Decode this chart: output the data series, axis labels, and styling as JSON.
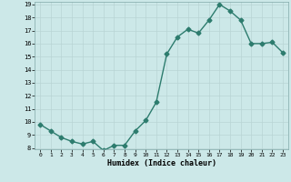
{
  "x": [
    0,
    1,
    2,
    3,
    4,
    5,
    6,
    7,
    8,
    9,
    10,
    11,
    12,
    13,
    14,
    15,
    16,
    17,
    18,
    19,
    20,
    21,
    22,
    23
  ],
  "y": [
    9.8,
    9.3,
    8.8,
    8.5,
    8.3,
    8.5,
    7.8,
    8.2,
    8.2,
    9.3,
    10.1,
    11.5,
    15.2,
    16.5,
    17.1,
    16.8,
    17.8,
    19.0,
    18.5,
    17.8,
    16.0,
    16.0,
    16.1,
    15.3
  ],
  "xlabel": "Humidex (Indice chaleur)",
  "ylim": [
    8,
    19
  ],
  "xlim": [
    -0.5,
    23.5
  ],
  "yticks": [
    8,
    9,
    10,
    11,
    12,
    13,
    14,
    15,
    16,
    17,
    18,
    19
  ],
  "xticks": [
    0,
    1,
    2,
    3,
    4,
    5,
    6,
    7,
    8,
    9,
    10,
    11,
    12,
    13,
    14,
    15,
    16,
    17,
    18,
    19,
    20,
    21,
    22,
    23
  ],
  "line_color": "#2d7c6e",
  "marker": "D",
  "marker_size": 2.5,
  "bg_color": "#cce8e8",
  "grid_color": "#b8d4d4",
  "line_width": 1.0
}
